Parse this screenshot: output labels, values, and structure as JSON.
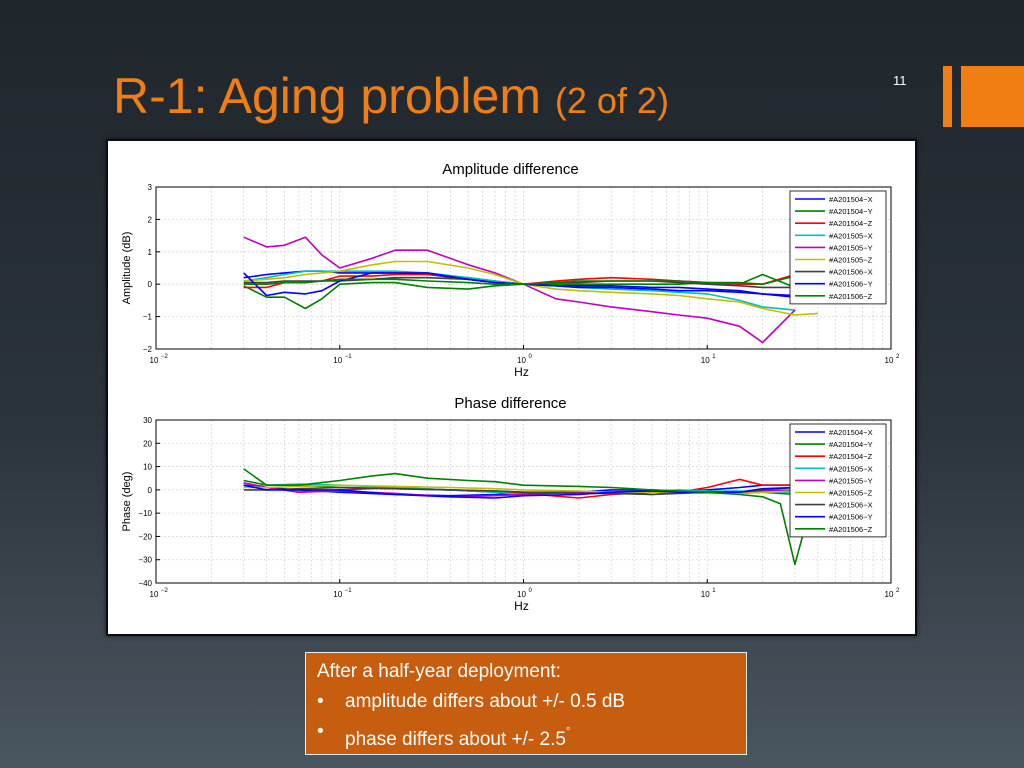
{
  "slide": {
    "title": "R-1: Aging problem",
    "subtitle": "(2 of 2)",
    "slide_number": "11",
    "accent_color": "#f07e12"
  },
  "callout": {
    "heading": "After a half-year deployment:",
    "bullets": [
      "amplitude differs about  +/- 0.5 dB",
      "phase differs about  +/- 2.5"
    ],
    "degree_symbol": "°",
    "background_color": "#c75d0e"
  },
  "chart_data": [
    {
      "type": "line",
      "title": "Amplitude difference",
      "xlabel": "Hz",
      "ylabel": "Amplitude (dB)",
      "xscale": "log",
      "xlim": [
        0.01,
        100
      ],
      "ylim": [
        -2,
        3
      ],
      "yticks": [
        "3",
        "2",
        "1",
        "0",
        "−1",
        "−2"
      ],
      "xticks": [
        {
          "base": "10",
          "exp": "−2"
        },
        {
          "base": "10",
          "exp": "−1"
        },
        {
          "base": "10",
          "exp": "0"
        },
        {
          "base": "10",
          "exp": "1"
        },
        {
          "base": "10",
          "exp": "2"
        }
      ],
      "grid": true,
      "legend": "top-right",
      "series": [
        {
          "name": "#A201504−X",
          "color": "#0000ff",
          "x": [
            0.03,
            0.04,
            0.05,
            0.065,
            0.08,
            0.1,
            0.15,
            0.2,
            0.3,
            0.5,
            0.7,
            1,
            1.5,
            2,
            3,
            5,
            7,
            10,
            15,
            20,
            30
          ],
          "y": [
            0.2,
            0.3,
            0.35,
            0.4,
            0.4,
            0.35,
            0.35,
            0.35,
            0.3,
            0.15,
            0.05,
            0,
            -0.05,
            -0.05,
            -0.05,
            -0.1,
            -0.1,
            -0.15,
            -0.2,
            -0.3,
            -0.35
          ]
        },
        {
          "name": "#A201504−Y",
          "color": "#008000",
          "x": [
            0.03,
            0.04,
            0.05,
            0.065,
            0.08,
            0.1,
            0.15,
            0.2,
            0.3,
            0.5,
            0.7,
            1,
            1.5,
            2,
            3,
            5,
            7,
            10,
            15,
            20,
            30
          ],
          "y": [
            -0.05,
            -0.4,
            -0.4,
            -0.75,
            -0.45,
            0,
            0.05,
            0.05,
            -0.1,
            -0.15,
            -0.05,
            0,
            0,
            0,
            0,
            0,
            0,
            0.05,
            0,
            0.3,
            -0.1
          ]
        },
        {
          "name": "#A201504−Z",
          "color": "#ff0000",
          "x": [
            0.03,
            0.04,
            0.05,
            0.065,
            0.08,
            0.1,
            0.15,
            0.2,
            0.3,
            0.5,
            0.7,
            1,
            1.5,
            2,
            3,
            5,
            7,
            10,
            15,
            20,
            30
          ],
          "y": [
            -0.1,
            -0.1,
            0.05,
            0.05,
            0.1,
            0.25,
            0.25,
            0.3,
            0.3,
            0.2,
            0.1,
            0,
            0.1,
            0.15,
            0.2,
            0.15,
            0.1,
            0.05,
            0,
            0,
            0.3
          ]
        },
        {
          "name": "#A201505−X",
          "color": "#00bfbf",
          "x": [
            0.03,
            0.04,
            0.05,
            0.065,
            0.08,
            0.1,
            0.15,
            0.2,
            0.3,
            0.5,
            0.7,
            1,
            1.5,
            2,
            3,
            5,
            7,
            10,
            15,
            20,
            30
          ],
          "y": [
            0.1,
            0.2,
            0.3,
            0.4,
            0.4,
            0.4,
            0.4,
            0.4,
            0.35,
            0.2,
            0.1,
            0,
            -0.05,
            -0.1,
            -0.15,
            -0.2,
            -0.25,
            -0.3,
            -0.5,
            -0.7,
            -0.8
          ]
        },
        {
          "name": "#A201505−Y",
          "color": "#bf00bf",
          "x": [
            0.03,
            0.04,
            0.05,
            0.065,
            0.08,
            0.1,
            0.15,
            0.2,
            0.3,
            0.5,
            0.7,
            1,
            1.5,
            2,
            3,
            5,
            7,
            10,
            15,
            20,
            30
          ],
          "y": [
            1.45,
            1.15,
            1.2,
            1.45,
            0.9,
            0.5,
            0.8,
            1.05,
            1.05,
            0.6,
            0.35,
            0,
            -0.45,
            -0.55,
            -0.7,
            -0.85,
            -0.95,
            -1.05,
            -1.3,
            -1.8,
            -0.8
          ]
        },
        {
          "name": "#A201505−Z",
          "color": "#bfbf00",
          "x": [
            0.03,
            0.04,
            0.05,
            0.065,
            0.08,
            0.1,
            0.15,
            0.2,
            0.3,
            0.5,
            0.7,
            1,
            1.5,
            2,
            3,
            5,
            7,
            10,
            15,
            20,
            30,
            40
          ],
          "y": [
            0.1,
            0.15,
            0.2,
            0.3,
            0.35,
            0.4,
            0.6,
            0.7,
            0.7,
            0.5,
            0.3,
            0,
            -0.15,
            -0.2,
            -0.25,
            -0.3,
            -0.35,
            -0.45,
            -0.55,
            -0.75,
            -0.95,
            -0.9
          ]
        },
        {
          "name": "#A201506−X",
          "color": "#404040",
          "x": [
            0.03,
            0.04,
            0.05,
            0.065,
            0.08,
            0.1,
            0.15,
            0.2,
            0.3,
            0.5,
            0.7,
            1,
            1.5,
            2,
            3,
            5,
            7,
            10,
            15,
            20,
            30
          ],
          "y": [
            0.05,
            0.05,
            0.1,
            0.1,
            0.1,
            0.1,
            0.15,
            0.2,
            0.2,
            0.15,
            0.05,
            0,
            0.05,
            0.05,
            0.1,
            0.1,
            0.05,
            0,
            -0.05,
            -0.1,
            -0.1
          ]
        },
        {
          "name": "#A201506−Y",
          "color": "#0000ff",
          "x": [
            0.03,
            0.04,
            0.05,
            0.065,
            0.08,
            0.1,
            0.15,
            0.2,
            0.3,
            0.5,
            0.7,
            1,
            1.5,
            2,
            3,
            5,
            7,
            10,
            15,
            20,
            30
          ],
          "y": [
            0.35,
            -0.35,
            -0.25,
            -0.3,
            -0.2,
            0.1,
            0.35,
            0.35,
            0.35,
            0.15,
            0.05,
            0,
            -0.05,
            -0.1,
            -0.1,
            -0.15,
            -0.2,
            -0.2,
            -0.25,
            -0.3,
            -0.4
          ]
        },
        {
          "name": "#A201506−Z",
          "color": "#008000",
          "x": [
            0.03,
            0.04,
            0.05,
            0.065,
            0.08,
            0.1,
            0.15,
            0.2,
            0.3,
            0.5,
            0.7,
            1,
            1.5,
            2,
            3,
            5,
            7,
            10,
            15,
            20,
            30
          ],
          "y": [
            0,
            0,
            0.05,
            0.05,
            0.1,
            0.15,
            0.15,
            0.15,
            0.1,
            0.05,
            0,
            0,
            0.05,
            0.1,
            0.1,
            0.1,
            0.1,
            0.05,
            0.05,
            0,
            0.25
          ]
        }
      ]
    },
    {
      "type": "line",
      "title": "Phase difference",
      "xlabel": "Hz",
      "ylabel": "Phase (deg)",
      "xscale": "log",
      "xlim": [
        0.01,
        100
      ],
      "ylim": [
        -40,
        30
      ],
      "yticks": [
        "30",
        "20",
        "10",
        "0",
        "−10",
        "−20",
        "−30",
        "−40"
      ],
      "xticks": [
        {
          "base": "10",
          "exp": "−2"
        },
        {
          "base": "10",
          "exp": "−1"
        },
        {
          "base": "10",
          "exp": "0"
        },
        {
          "base": "10",
          "exp": "1"
        },
        {
          "base": "10",
          "exp": "2"
        }
      ],
      "grid": true,
      "legend": "top-right",
      "series": [
        {
          "name": "#A201504−X",
          "color": "#0000ff",
          "x": [
            0.03,
            0.04,
            0.06,
            0.1,
            0.2,
            0.4,
            0.7,
            1,
            2,
            3,
            5,
            7,
            10,
            15,
            20,
            30
          ],
          "y": [
            2,
            1,
            0,
            -1,
            -2,
            -2.5,
            -2,
            -1.5,
            -1,
            0,
            0,
            -0.5,
            0,
            1,
            2,
            2
          ]
        },
        {
          "name": "#A201504−Y",
          "color": "#008000",
          "x": [
            0.03,
            0.04,
            0.06,
            0.1,
            0.2,
            0.4,
            0.7,
            1,
            2,
            3,
            5,
            7,
            10,
            15,
            20,
            30
          ],
          "y": [
            4,
            2,
            2,
            1,
            0.5,
            0,
            -0.5,
            -1,
            -1,
            -1,
            -1,
            -0.5,
            -1,
            -1.5,
            -1,
            -2
          ]
        },
        {
          "name": "#A201504−Z",
          "color": "#ff0000",
          "x": [
            0.03,
            0.04,
            0.06,
            0.1,
            0.2,
            0.4,
            0.7,
            1,
            2,
            3,
            5,
            7,
            10,
            15,
            20,
            30
          ],
          "y": [
            3,
            1,
            -1,
            0,
            1,
            0,
            -1,
            -1.5,
            -3.5,
            -2,
            -1,
            -1,
            1,
            4.5,
            2,
            2
          ]
        },
        {
          "name": "#A201505−X",
          "color": "#00bfbf",
          "x": [
            0.03,
            0.04,
            0.06,
            0.1,
            0.2,
            0.4,
            0.7,
            1,
            2,
            3,
            5,
            7,
            10,
            15,
            20,
            30
          ],
          "y": [
            1,
            2,
            2.5,
            2,
            1,
            0,
            -1,
            -2,
            -1,
            -1,
            -0.5,
            0,
            -0.5,
            -0.5,
            -1,
            -1
          ]
        },
        {
          "name": "#A201505−Y",
          "color": "#bf00bf",
          "x": [
            0.03,
            0.04,
            0.06,
            0.1,
            0.2,
            0.4,
            0.7,
            1,
            2,
            3,
            5,
            7,
            10,
            15,
            20,
            30
          ],
          "y": [
            3,
            1,
            -1,
            -0.5,
            -1.5,
            -3,
            -2.5,
            -2,
            -1,
            -1,
            -2,
            -1,
            -1,
            -1,
            -0.5,
            0
          ]
        },
        {
          "name": "#A201505−Z",
          "color": "#bfbf00",
          "x": [
            0.03,
            0.04,
            0.06,
            0.1,
            0.2,
            0.4,
            0.7,
            1,
            2,
            3,
            5,
            7,
            10,
            15,
            20,
            30
          ],
          "y": [
            1,
            1,
            1.5,
            2,
            1.5,
            1,
            0.5,
            0,
            -0.5,
            -1,
            -1,
            -1,
            -1.5,
            -1.5,
            -1,
            -0.5
          ]
        },
        {
          "name": "#A201506−X",
          "color": "#404040",
          "x": [
            0.03,
            0.04,
            0.06,
            0.1,
            0.2,
            0.4,
            0.7,
            1,
            2,
            3,
            5,
            7,
            10,
            15,
            20,
            30
          ],
          "y": [
            0,
            0,
            0.5,
            1,
            0.5,
            0,
            -0.5,
            -1,
            -1.5,
            -1.5,
            -2,
            -1.5,
            -1,
            -1,
            0,
            1
          ]
        },
        {
          "name": "#A201506−Y",
          "color": "#0000ff",
          "x": [
            0.03,
            0.04,
            0.06,
            0.1,
            0.2,
            0.4,
            0.7,
            1,
            2,
            3,
            5,
            7,
            10,
            15,
            20,
            30
          ],
          "y": [
            2,
            0,
            0,
            0,
            -2,
            -3,
            -3.5,
            -2.5,
            -2,
            -1,
            -0.5,
            -1,
            -1,
            -1,
            0.5,
            1
          ]
        },
        {
          "name": "#A201506−Z",
          "color": "#008000",
          "x": [
            0.03,
            0.04,
            0.06,
            0.1,
            0.15,
            0.2,
            0.3,
            0.5,
            0.7,
            1,
            2,
            3,
            5,
            7,
            10,
            15,
            20,
            25,
            30,
            33
          ],
          "y": [
            9,
            2,
            2,
            4,
            6,
            7,
            5,
            4,
            3.5,
            2,
            1.5,
            1,
            0,
            -0.5,
            -1,
            -2,
            -3,
            -6,
            -32,
            -20
          ]
        }
      ]
    }
  ]
}
